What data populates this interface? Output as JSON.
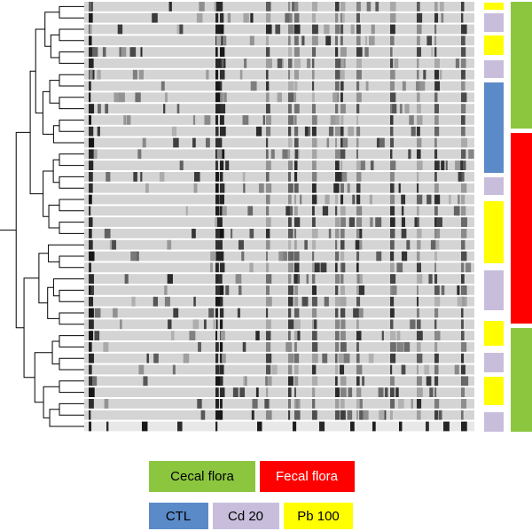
{
  "legend_flora": [
    {
      "label": "Cecal flora",
      "color": "#8cc63f"
    },
    {
      "label": "Fecal flora",
      "color": "#ff0000"
    }
  ],
  "legend_treatment": [
    {
      "label": "CTL",
      "color": "#5b8ac8"
    },
    {
      "label": "Cd 20",
      "color": "#c8bedc"
    },
    {
      "label": "Pb 100",
      "color": "#ffff00"
    }
  ]
}
